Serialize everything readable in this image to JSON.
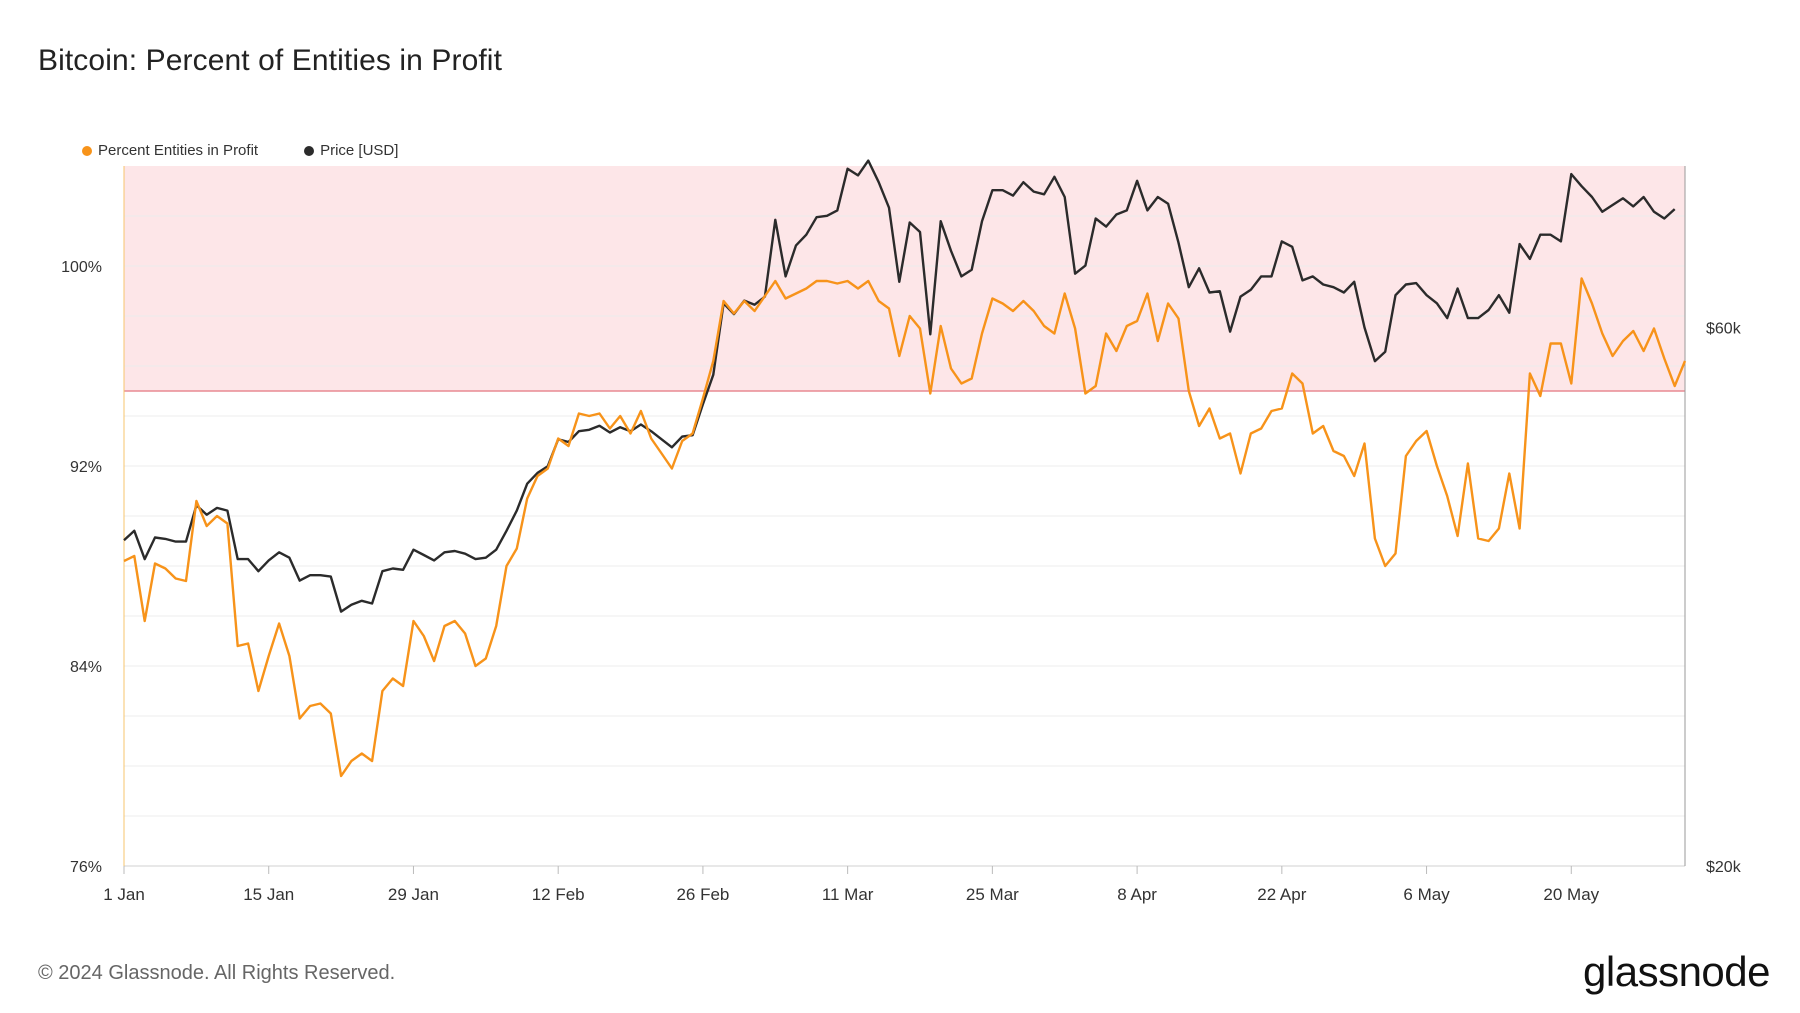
{
  "title": "Bitcoin: Percent of Entities in Profit",
  "footer": "© 2024 Glassnode. All Rights Reserved.",
  "logo": "glassnode",
  "colors": {
    "profit": "#f7931a",
    "price": "#2b2b2b",
    "band": "#fde6e8",
    "threshold": "#e88a92"
  },
  "chart_data": {
    "type": "line",
    "title": "Bitcoin: Percent of Entities in Profit",
    "legend_placement": "top-left",
    "grid": true,
    "x_range": [
      "2024-01-01",
      "2024-05-27"
    ],
    "x_ticks": [
      "1 Jan",
      "15 Jan",
      "29 Jan",
      "12 Feb",
      "26 Feb",
      "11 Mar",
      "25 Mar",
      "8 Apr",
      "22 Apr",
      "6 May",
      "20 May"
    ],
    "y_left": {
      "ticks": [
        "76%",
        "84%",
        "92%",
        "100%"
      ],
      "range": [
        76,
        104
      ]
    },
    "y_right": {
      "ticks": [
        "$20k",
        "$60k"
      ],
      "range": [
        20000,
        72000
      ]
    },
    "threshold_band": {
      "from": 95,
      "to": 104
    },
    "series": [
      {
        "name": "Percent Entities in Profit",
        "axis": "left",
        "values": [
          88.2,
          88.4,
          85.8,
          88.1,
          87.9,
          87.5,
          87.4,
          90.6,
          89.6,
          90.0,
          89.7,
          84.8,
          84.9,
          83.0,
          84.4,
          85.7,
          84.4,
          81.9,
          82.4,
          82.5,
          82.1,
          79.6,
          80.2,
          80.5,
          80.2,
          83.0,
          83.5,
          83.2,
          85.8,
          85.2,
          84.2,
          85.6,
          85.8,
          85.3,
          84.0,
          84.3,
          85.6,
          88.0,
          88.7,
          90.7,
          91.6,
          91.9,
          93.1,
          92.8,
          94.1,
          94.0,
          94.1,
          93.5,
          94.0,
          93.3,
          94.2,
          93.1,
          92.5,
          91.9,
          93.0,
          93.3,
          94.7,
          96.2,
          98.6,
          98.1,
          98.6,
          98.2,
          98.8,
          99.4,
          98.7,
          98.9,
          99.1,
          99.4,
          99.4,
          99.3,
          99.4,
          99.1,
          99.4,
          98.6,
          98.3,
          96.4,
          98.0,
          97.5,
          94.9,
          97.6,
          95.9,
          95.3,
          95.5,
          97.3,
          98.7,
          98.5,
          98.2,
          98.6,
          98.2,
          97.6,
          97.3,
          98.9,
          97.5,
          94.9,
          95.2,
          97.3,
          96.6,
          97.6,
          97.8,
          98.9,
          97.0,
          98.5,
          97.9,
          95.0,
          93.6,
          94.3,
          93.1,
          93.3,
          91.7,
          93.3,
          93.5,
          94.2,
          94.3,
          95.7,
          95.3,
          93.3,
          93.6,
          92.6,
          92.4,
          91.6,
          92.9,
          89.1,
          88.0,
          88.5,
          92.4,
          93.0,
          93.4,
          92.0,
          90.8,
          89.2,
          92.1,
          89.1,
          89.0,
          89.5,
          91.7,
          89.5,
          95.7,
          94.8,
          96.9,
          96.9,
          95.3,
          99.5,
          98.5,
          97.3,
          96.4,
          97.0,
          97.4,
          96.6,
          97.5,
          96.3,
          95.2,
          96.2
        ]
      },
      {
        "name": "Price [USD]",
        "axis": "right",
        "values": [
          44200,
          44900,
          42800,
          44400,
          44300,
          44100,
          44100,
          46800,
          46100,
          46600,
          46400,
          42800,
          42800,
          41900,
          42700,
          43300,
          42900,
          41200,
          41600,
          41600,
          41500,
          38900,
          39400,
          39700,
          39500,
          41900,
          42100,
          42000,
          43500,
          43100,
          42700,
          43300,
          43400,
          43200,
          42800,
          42900,
          43500,
          44900,
          46400,
          48400,
          49200,
          49700,
          51700,
          51500,
          52300,
          52400,
          52700,
          52200,
          52600,
          52300,
          52800,
          52300,
          51700,
          51100,
          51900,
          52000,
          54300,
          56500,
          61800,
          61000,
          62000,
          61700,
          62300,
          68000,
          63800,
          66100,
          66900,
          68200,
          68300,
          68700,
          71800,
          71300,
          72400,
          70800,
          68900,
          63400,
          67800,
          67100,
          59500,
          67900,
          65700,
          63800,
          64300,
          67900,
          70200,
          70200,
          69800,
          70800,
          70100,
          69900,
          71200,
          69700,
          64000,
          64600,
          68100,
          67500,
          68400,
          68700,
          70900,
          68700,
          69700,
          69200,
          66300,
          63000,
          64400,
          62600,
          62700,
          59700,
          62300,
          62800,
          63800,
          63800,
          66400,
          66000,
          63500,
          63800,
          63200,
          63000,
          62600,
          63400,
          60000,
          57500,
          58200,
          62400,
          63200,
          63300,
          62400,
          61800,
          60700,
          62900,
          60700,
          60700,
          61300,
          62400,
          61100,
          66200,
          65100,
          66900,
          66900,
          66400,
          71400,
          70500,
          69700,
          68600,
          69100,
          69600,
          69000,
          69700,
          68600,
          68100,
          68800
        ]
      }
    ]
  }
}
